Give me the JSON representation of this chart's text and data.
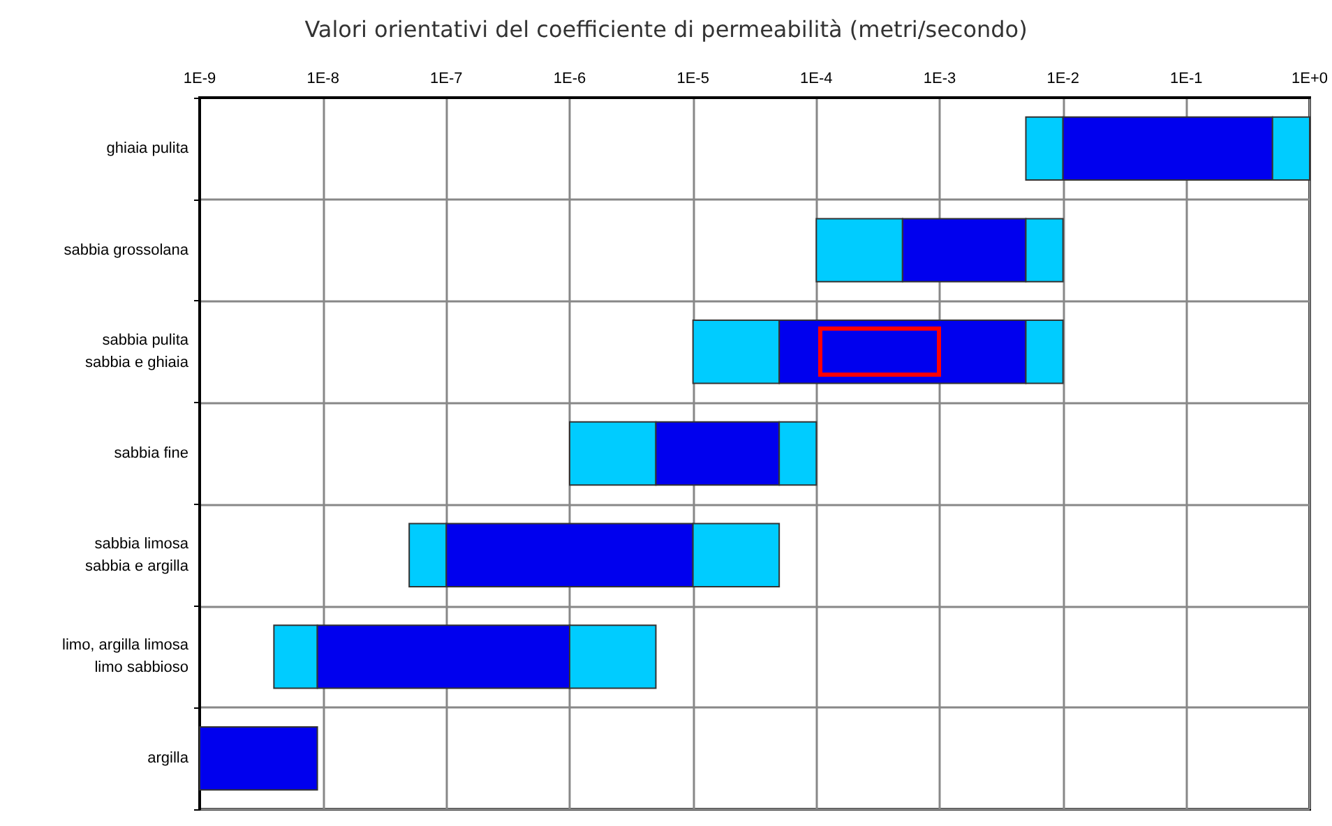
{
  "chart_data": {
    "type": "bar",
    "orientation": "horizontal",
    "title": "Valori orientativi del coefficiente di permeabilità (metri/secondo)",
    "categories": [
      "ghiaia pulita",
      "sabbia grossolana",
      "sabbia pulita\nsabbia e ghiaia",
      "sabbia fine",
      "sabbia limosa\nsabbia e argilla",
      "limo, argilla limosa\nlimo sabbioso",
      "argilla"
    ],
    "series": [
      {
        "color": "#00ccff",
        "base": [
          0.005,
          0.0001,
          1e-05,
          1e-06,
          5e-08,
          4e-09,
          null
        ],
        "values": [
          0.005,
          0.0004,
          4e-05,
          4e-06,
          5e-08,
          5e-09,
          null
        ]
      },
      {
        "color": "#0000ee",
        "base": [
          0.01,
          0.0005,
          5e-05,
          5e-06,
          1e-07,
          9e-09,
          1e-09
        ],
        "values": [
          0.49,
          0.0045,
          0.00495,
          4.5e-05,
          9.9e-06,
          9.91e-07,
          8e-09
        ]
      },
      {
        "color": "#00ccff",
        "base": [
          0.5,
          0.005,
          0.005,
          5e-05,
          1e-05,
          1e-06,
          null
        ],
        "values": [
          0.5,
          0.005,
          0.005,
          5e-05,
          4e-05,
          4e-06,
          null
        ]
      }
    ],
    "log": "x",
    "xlim": [
      1e-09,
      1
    ],
    "xticks": [
      {
        "value": 1e-09,
        "label": "1E-9"
      },
      {
        "value": 1e-08,
        "label": "1E-8"
      },
      {
        "value": 1e-07,
        "label": "1E-7"
      },
      {
        "value": 1e-06,
        "label": "1E-6"
      },
      {
        "value": 1e-05,
        "label": "1E-5"
      },
      {
        "value": 0.0001,
        "label": "1E-4"
      },
      {
        "value": 0.001,
        "label": "1E-3"
      },
      {
        "value": 0.01,
        "label": "1E-2"
      },
      {
        "value": 0.1,
        "label": "1E-1"
      },
      {
        "value": 1,
        "label": "1E+0"
      }
    ],
    "grid": true
  }
}
